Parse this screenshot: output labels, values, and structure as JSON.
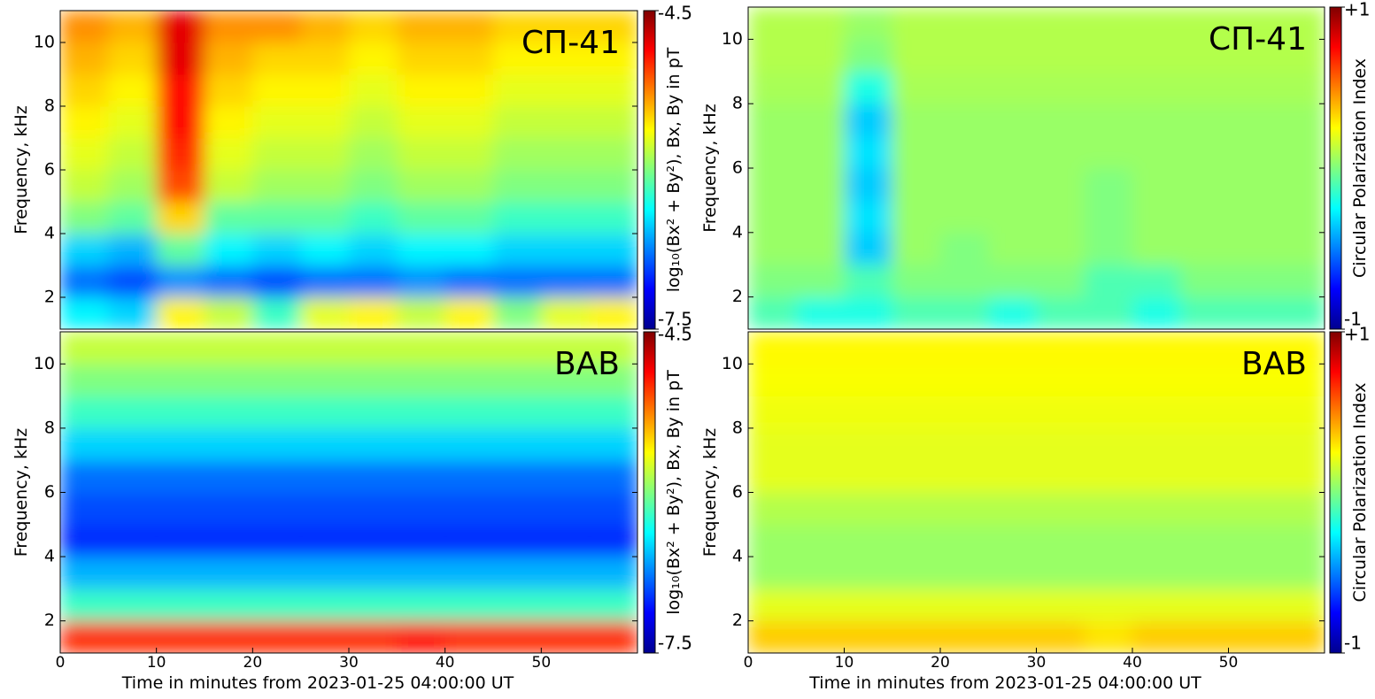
{
  "chart_data": [
    {
      "type": "heatmap",
      "label": "СП-41",
      "ylabel": "Frequency, kHz",
      "colorbar_label": "log₁₀(Bx² + By²), Bx, By in pT",
      "colormap": "jet",
      "xlim": [
        0,
        60
      ],
      "ylim": [
        1,
        11
      ],
      "yticks": [
        2,
        4,
        6,
        8,
        10
      ],
      "x_edges": [
        0,
        5,
        10,
        15,
        20,
        25,
        30,
        35,
        40,
        45,
        50,
        55,
        60
      ],
      "y_edges": [
        1,
        2,
        3,
        4,
        5,
        6,
        7,
        8,
        9,
        10,
        11
      ],
      "zlim": [
        -7.5,
        -4.5
      ],
      "zticks": [
        -4.5,
        -7.5
      ],
      "z": [
        [
          -6.4,
          -6.5,
          -5.6,
          -5.8,
          -6.2,
          -5.7,
          -5.6,
          -5.8,
          -5.6,
          -6.0,
          -5.7,
          -5.6
        ],
        [
          -6.8,
          -6.9,
          -6.7,
          -6.8,
          -6.9,
          -6.8,
          -6.8,
          -6.7,
          -6.8,
          -6.8,
          -6.8,
          -6.8
        ],
        [
          -6.5,
          -6.6,
          -6.1,
          -6.4,
          -6.5,
          -6.4,
          -6.5,
          -6.4,
          -6.4,
          -6.5,
          -6.5,
          -6.5
        ],
        [
          -6.0,
          -6.1,
          -5.5,
          -6.1,
          -6.1,
          -6.1,
          -6.2,
          -6.1,
          -6.1,
          -6.2,
          -6.2,
          -6.2
        ],
        [
          -5.8,
          -5.9,
          -5.1,
          -5.8,
          -5.9,
          -5.9,
          -6.0,
          -5.9,
          -5.9,
          -6.0,
          -6.0,
          -6.0
        ],
        [
          -5.7,
          -5.8,
          -5.0,
          -5.7,
          -5.8,
          -5.8,
          -5.9,
          -5.8,
          -5.8,
          -5.9,
          -5.9,
          -5.9
        ],
        [
          -5.6,
          -5.7,
          -4.9,
          -5.6,
          -5.7,
          -5.7,
          -5.8,
          -5.7,
          -5.7,
          -5.8,
          -5.8,
          -5.8
        ],
        [
          -5.5,
          -5.6,
          -4.9,
          -5.5,
          -5.6,
          -5.6,
          -5.7,
          -5.6,
          -5.6,
          -5.7,
          -5.7,
          -5.7
        ],
        [
          -5.4,
          -5.5,
          -4.8,
          -5.4,
          -5.5,
          -5.5,
          -5.6,
          -5.5,
          -5.5,
          -5.6,
          -5.6,
          -5.6
        ],
        [
          -5.3,
          -5.4,
          -4.8,
          -5.3,
          -5.3,
          -5.4,
          -5.5,
          -5.4,
          -5.4,
          -5.5,
          -5.5,
          -5.5
        ]
      ]
    },
    {
      "type": "heatmap",
      "label": "СП-41",
      "ylabel": "Frequency, kHz",
      "colorbar_label": "Circular Polarization Index",
      "colormap": "jet",
      "xlim": [
        0,
        60
      ],
      "ylim": [
        1,
        11
      ],
      "yticks": [
        2,
        4,
        6,
        8,
        10
      ],
      "x_edges": [
        0,
        5,
        10,
        15,
        20,
        25,
        30,
        35,
        40,
        45,
        50,
        55,
        60
      ],
      "y_edges": [
        1,
        2,
        3,
        4,
        5,
        6,
        7,
        8,
        9,
        10,
        11
      ],
      "zlim": [
        -1,
        1
      ],
      "zticks": [
        {
          "value": 1,
          "label": "+1"
        },
        -1
      ],
      "z": [
        [
          -0.1,
          -0.2,
          -0.2,
          -0.1,
          -0.1,
          -0.2,
          -0.1,
          -0.1,
          -0.2,
          -0.1,
          -0.1,
          -0.1
        ],
        [
          0.0,
          0.0,
          -0.1,
          0.0,
          0.0,
          0.0,
          0.0,
          -0.1,
          -0.1,
          0.0,
          0.0,
          0.0
        ],
        [
          0.05,
          0.05,
          -0.35,
          0.05,
          0.0,
          0.05,
          0.05,
          0.0,
          0.05,
          0.05,
          0.05,
          0.05
        ],
        [
          0.05,
          0.05,
          -0.3,
          0.05,
          0.05,
          0.05,
          0.05,
          0.0,
          0.05,
          0.05,
          0.05,
          0.05
        ],
        [
          0.05,
          0.05,
          -0.35,
          0.05,
          0.05,
          0.05,
          0.05,
          0.0,
          0.05,
          0.05,
          0.05,
          0.05
        ],
        [
          0.05,
          0.05,
          -0.3,
          0.05,
          0.05,
          0.05,
          0.05,
          0.05,
          0.05,
          0.05,
          0.05,
          0.05
        ],
        [
          0.05,
          0.05,
          -0.35,
          0.05,
          0.05,
          0.05,
          0.05,
          0.05,
          0.05,
          0.05,
          0.05,
          0.05
        ],
        [
          0.08,
          0.08,
          -0.2,
          0.08,
          0.08,
          0.08,
          0.08,
          0.08,
          0.08,
          0.08,
          0.08,
          0.08
        ],
        [
          0.1,
          0.1,
          0.0,
          0.1,
          0.1,
          0.1,
          0.1,
          0.1,
          0.1,
          0.1,
          0.1,
          0.1
        ],
        [
          0.1,
          0.1,
          0.05,
          0.1,
          0.1,
          0.1,
          0.1,
          0.1,
          0.1,
          0.1,
          0.1,
          0.1
        ]
      ]
    },
    {
      "type": "heatmap",
      "label": "BAB",
      "ylabel": "Frequency, kHz",
      "xlabel": "Time in minutes from 2023-01-25 04:00:00 UT",
      "colorbar_label": "log₁₀(Bx² + By²), Bx, By in pT",
      "colormap": "jet",
      "xlim": [
        0,
        60
      ],
      "ylim": [
        1,
        11
      ],
      "xticks": [
        0,
        10,
        20,
        30,
        40,
        50
      ],
      "yticks": [
        2,
        4,
        6,
        8,
        10
      ],
      "x_edges": [
        0,
        5,
        10,
        15,
        20,
        25,
        30,
        35,
        40,
        45,
        50,
        55,
        60
      ],
      "y_edges": [
        1,
        2,
        3,
        4,
        5,
        6,
        7,
        8,
        9,
        10,
        11
      ],
      "zlim": [
        -7.5,
        -4.5
      ],
      "zticks": [
        -4.5,
        -7.5
      ],
      "z": [
        [
          -5.0,
          -5.0,
          -5.0,
          -5.0,
          -5.0,
          -5.0,
          -5.0,
          -4.9,
          -5.0,
          -5.0,
          -5.0,
          -5.0
        ],
        [
          -6.2,
          -6.2,
          -6.2,
          -6.2,
          -6.2,
          -6.2,
          -6.2,
          -6.2,
          -6.2,
          -6.2,
          -6.2,
          -6.2
        ],
        [
          -6.6,
          -6.6,
          -6.6,
          -6.6,
          -6.6,
          -6.6,
          -6.6,
          -6.6,
          -6.6,
          -6.6,
          -6.6,
          -6.6
        ],
        [
          -7.0,
          -7.0,
          -7.0,
          -7.0,
          -7.0,
          -7.0,
          -7.0,
          -7.0,
          -7.0,
          -7.0,
          -7.0,
          -7.0
        ],
        [
          -6.9,
          -6.9,
          -6.9,
          -6.9,
          -6.9,
          -6.9,
          -6.9,
          -6.9,
          -6.9,
          -6.9,
          -6.9,
          -6.9
        ],
        [
          -6.8,
          -6.8,
          -6.8,
          -6.8,
          -6.8,
          -6.8,
          -6.8,
          -6.8,
          -6.8,
          -6.8,
          -6.8,
          -6.8
        ],
        [
          -6.5,
          -6.5,
          -6.5,
          -6.5,
          -6.5,
          -6.5,
          -6.5,
          -6.5,
          -6.5,
          -6.5,
          -6.5,
          -6.5
        ],
        [
          -6.2,
          -6.2,
          -6.2,
          -6.2,
          -6.2,
          -6.2,
          -6.2,
          -6.2,
          -6.2,
          -6.2,
          -6.2,
          -6.2
        ],
        [
          -6.0,
          -6.0,
          -6.0,
          -6.0,
          -6.0,
          -6.0,
          -6.0,
          -6.0,
          -6.0,
          -6.0,
          -6.0,
          -6.0
        ],
        [
          -5.8,
          -5.8,
          -5.8,
          -5.8,
          -5.8,
          -5.8,
          -5.8,
          -5.8,
          -5.8,
          -5.8,
          -5.8,
          -5.8
        ]
      ]
    },
    {
      "type": "heatmap",
      "label": "BAB",
      "ylabel": "Frequency, kHz",
      "xlabel": "Time in minutes from 2023-01-25 04:00:00 UT",
      "colorbar_label": "Circular Polarization Index",
      "colormap": "jet",
      "xlim": [
        0,
        60
      ],
      "ylim": [
        1,
        11
      ],
      "xticks": [
        0,
        10,
        20,
        30,
        40,
        50
      ],
      "yticks": [
        2,
        4,
        6,
        8,
        10
      ],
      "x_edges": [
        0,
        5,
        10,
        15,
        20,
        25,
        30,
        35,
        40,
        45,
        50,
        55,
        60
      ],
      "y_edges": [
        1,
        2,
        3,
        4,
        5,
        6,
        7,
        8,
        9,
        10,
        11
      ],
      "zlim": [
        -1,
        1
      ],
      "zticks": [
        {
          "value": 1,
          "label": "+1"
        },
        -1
      ],
      "z": [
        [
          0.35,
          0.35,
          0.35,
          0.35,
          0.35,
          0.35,
          0.35,
          0.3,
          0.35,
          0.35,
          0.35,
          0.35
        ],
        [
          0.2,
          0.2,
          0.2,
          0.2,
          0.2,
          0.2,
          0.2,
          0.2,
          0.2,
          0.2,
          0.2,
          0.2
        ],
        [
          0.05,
          0.05,
          0.05,
          0.05,
          0.05,
          0.05,
          0.05,
          0.05,
          0.05,
          0.05,
          0.05,
          0.05
        ],
        [
          0.05,
          0.05,
          0.05,
          0.05,
          0.05,
          0.05,
          0.05,
          0.05,
          0.05,
          0.05,
          0.05,
          0.05
        ],
        [
          0.1,
          0.1,
          0.1,
          0.1,
          0.1,
          0.1,
          0.1,
          0.1,
          0.1,
          0.1,
          0.1,
          0.1
        ],
        [
          0.2,
          0.2,
          0.2,
          0.2,
          0.2,
          0.2,
          0.2,
          0.2,
          0.2,
          0.2,
          0.2,
          0.2
        ],
        [
          0.2,
          0.2,
          0.2,
          0.2,
          0.2,
          0.2,
          0.2,
          0.2,
          0.2,
          0.2,
          0.2,
          0.2
        ],
        [
          0.22,
          0.22,
          0.22,
          0.22,
          0.22,
          0.22,
          0.22,
          0.22,
          0.22,
          0.22,
          0.22,
          0.22
        ],
        [
          0.24,
          0.24,
          0.24,
          0.24,
          0.24,
          0.24,
          0.24,
          0.24,
          0.24,
          0.24,
          0.24,
          0.24
        ],
        [
          0.26,
          0.26,
          0.26,
          0.26,
          0.26,
          0.26,
          0.26,
          0.26,
          0.26,
          0.26,
          0.26,
          0.26
        ]
      ]
    }
  ]
}
